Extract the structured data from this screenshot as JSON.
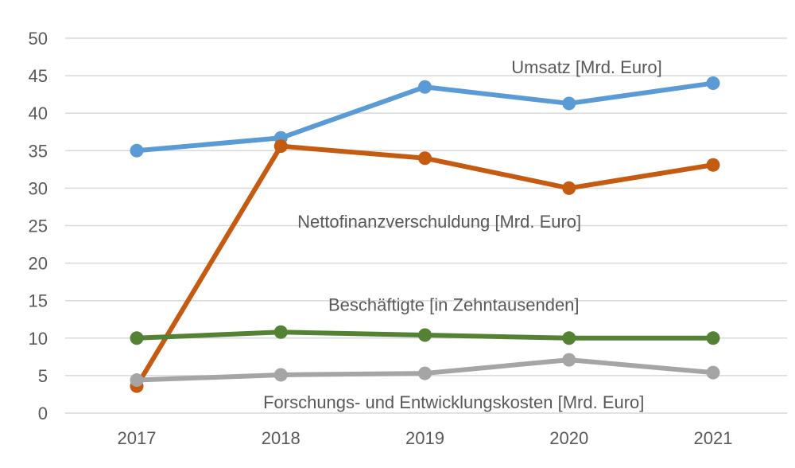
{
  "chart_data": {
    "type": "line",
    "categories": [
      "2017",
      "2018",
      "2019",
      "2020",
      "2021"
    ],
    "ylim": [
      0,
      50
    ],
    "y_ticks": [
      0,
      5,
      10,
      15,
      20,
      25,
      30,
      35,
      40,
      45,
      50
    ],
    "grid": true,
    "legend": "none",
    "series": [
      {
        "name": "Umsatz [Mrd. Euro]",
        "values": [
          35.0,
          36.7,
          43.5,
          41.3,
          44.0
        ],
        "color": "#5B9BD5",
        "label_near": {
          "x_index": 2.6,
          "y_value": 46.2,
          "anchor": "start"
        }
      },
      {
        "name": "Nettofinanzverschuldung  [Mrd. Euro]",
        "values": [
          3.6,
          35.6,
          34.0,
          30.0,
          33.1
        ],
        "color": "#C55A11",
        "label_near": {
          "x_index": 2.1,
          "y_value": 25.6,
          "anchor": "middle"
        }
      },
      {
        "name": "Beschäftigte [in Zehntausenden]",
        "values": [
          10.0,
          10.8,
          10.4,
          10.0,
          10.0
        ],
        "color": "#548235",
        "label_near": {
          "x_index": 2.2,
          "y_value": 14.5,
          "anchor": "middle"
        }
      },
      {
        "name": "Forschungs- und Entwicklungskosten [Mrd. Euro]",
        "values": [
          4.4,
          5.1,
          5.3,
          7.1,
          5.4
        ],
        "color": "#A5A5A5",
        "label_near": {
          "x_index": 2.2,
          "y_value": 1.5,
          "anchor": "middle"
        }
      }
    ]
  }
}
